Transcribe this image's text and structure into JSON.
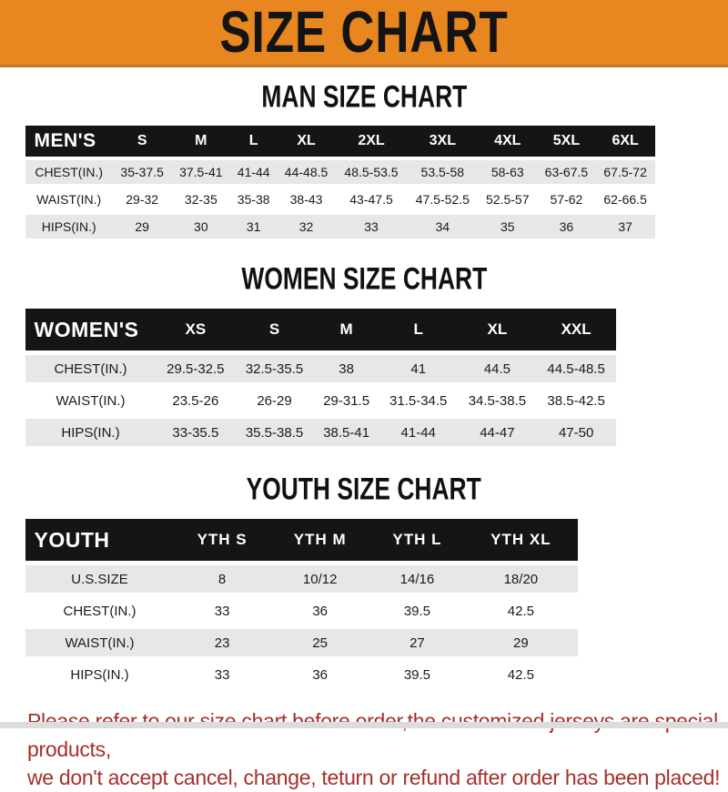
{
  "banner": {
    "title": "SIZE CHART",
    "bg_color": "#E8861F",
    "text_color": "#141414"
  },
  "sections": [
    {
      "heading": "MAN SIZE CHART",
      "header_label": "MEN'S",
      "columns": [
        "S",
        "M",
        "L",
        "XL",
        "2XL",
        "3XL",
        "4XL",
        "5XL",
        "6XL"
      ],
      "rows": [
        {
          "label": "CHEST(IN.)",
          "values": [
            "35-37.5",
            "37.5-41",
            "41-44",
            "44-48.5",
            "48.5-53.5",
            "53.5-58",
            "58-63",
            "63-67.5",
            "67.5-72"
          ]
        },
        {
          "label": "WAIST(IN.)",
          "values": [
            "29-32",
            "32-35",
            "35-38",
            "38-43",
            "43-47.5",
            "47.5-52.5",
            "52.5-57",
            "57-62",
            "62-66.5"
          ]
        },
        {
          "label": "HIPS(IN.)",
          "values": [
            "29",
            "30",
            "31",
            "32",
            "33",
            "34",
            "35",
            "36",
            "37"
          ]
        }
      ]
    },
    {
      "heading": "WOMEN SIZE CHART",
      "header_label": "WOMEN'S",
      "columns": [
        "XS",
        "S",
        "M",
        "L",
        "XL",
        "XXL"
      ],
      "rows": [
        {
          "label": "CHEST(IN.)",
          "values": [
            "29.5-32.5",
            "32.5-35.5",
            "38",
            "41",
            "44.5",
            "44.5-48.5"
          ]
        },
        {
          "label": "WAIST(IN.)",
          "values": [
            "23.5-26",
            "26-29",
            "29-31.5",
            "31.5-34.5",
            "34.5-38.5",
            "38.5-42.5"
          ]
        },
        {
          "label": "HIPS(IN.)",
          "values": [
            "33-35.5",
            "35.5-38.5",
            "38.5-41",
            "41-44",
            "44-47",
            "47-50"
          ]
        }
      ]
    },
    {
      "heading": "YOUTH SIZE CHART",
      "header_label": "YOUTH",
      "columns": [
        "YTH S",
        "YTH M",
        "YTH L",
        "YTH XL"
      ],
      "rows": [
        {
          "label": "U.S.SIZE",
          "values": [
            "8",
            "10/12",
            "14/16",
            "18/20"
          ]
        },
        {
          "label": "CHEST(IN.)",
          "values": [
            "33",
            "36",
            "39.5",
            "42.5"
          ]
        },
        {
          "label": "WAIST(IN.)",
          "values": [
            "23",
            "25",
            "27",
            "29"
          ]
        },
        {
          "label": "HIPS(IN.)",
          "values": [
            "33",
            "36",
            "39.5",
            "42.5"
          ]
        }
      ]
    }
  ],
  "footer": {
    "line1": "Please refer to our size chart before order,the customized jerseys are special products,",
    "line2": "we don't accept cancel, change, teturn or refund after order has been placed!",
    "text_color": "#A52F2B"
  },
  "colors": {
    "header_bar_bg": "#171513",
    "header_bar_text": "#ffffff",
    "row_stripe": "#e7e7e7",
    "row_plain": "#ffffff"
  },
  "chart_data": [
    {
      "type": "table",
      "title": "MAN SIZE CHART",
      "columns": [
        "MEN'S",
        "S",
        "M",
        "L",
        "XL",
        "2XL",
        "3XL",
        "4XL",
        "5XL",
        "6XL"
      ],
      "rows": [
        [
          "CHEST(IN.)",
          "35-37.5",
          "37.5-41",
          "41-44",
          "44-48.5",
          "48.5-53.5",
          "53.5-58",
          "58-63",
          "63-67.5",
          "67.5-72"
        ],
        [
          "WAIST(IN.)",
          "29-32",
          "32-35",
          "35-38",
          "38-43",
          "43-47.5",
          "47.5-52.5",
          "52.5-57",
          "57-62",
          "62-66.5"
        ],
        [
          "HIPS(IN.)",
          "29",
          "30",
          "31",
          "32",
          "33",
          "34",
          "35",
          "36",
          "37"
        ]
      ]
    },
    {
      "type": "table",
      "title": "WOMEN SIZE CHART",
      "columns": [
        "WOMEN'S",
        "XS",
        "S",
        "M",
        "L",
        "XL",
        "XXL"
      ],
      "rows": [
        [
          "CHEST(IN.)",
          "29.5-32.5",
          "32.5-35.5",
          "38",
          "41",
          "44.5",
          "44.5-48.5"
        ],
        [
          "WAIST(IN.)",
          "23.5-26",
          "26-29",
          "29-31.5",
          "31.5-34.5",
          "34.5-38.5",
          "38.5-42.5"
        ],
        [
          "HIPS(IN.)",
          "33-35.5",
          "35.5-38.5",
          "38.5-41",
          "41-44",
          "44-47",
          "47-50"
        ]
      ]
    },
    {
      "type": "table",
      "title": "YOUTH SIZE CHART",
      "columns": [
        "YOUTH",
        "YTH S",
        "YTH M",
        "YTH L",
        "YTH XL"
      ],
      "rows": [
        [
          "U.S.SIZE",
          "8",
          "10/12",
          "14/16",
          "18/20"
        ],
        [
          "CHEST(IN.)",
          "33",
          "36",
          "39.5",
          "42.5"
        ],
        [
          "WAIST(IN.)",
          "23",
          "25",
          "27",
          "29"
        ],
        [
          "HIPS(IN.)",
          "33",
          "36",
          "39.5",
          "42.5"
        ]
      ]
    }
  ]
}
